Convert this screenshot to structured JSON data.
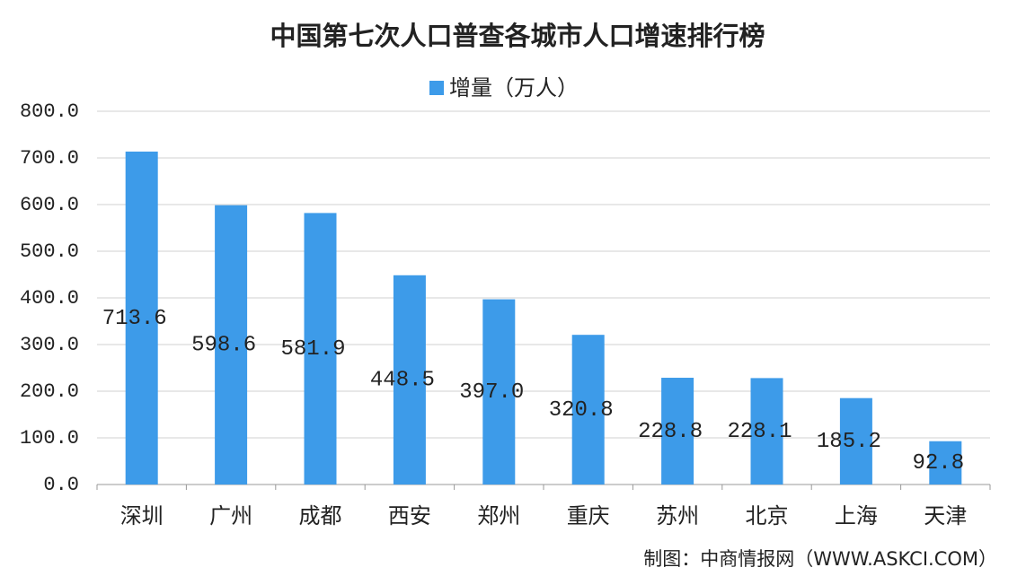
{
  "chart_data": {
    "type": "bar",
    "title": "中国第七次人口普查各城市人口增速排行榜",
    "legend": "增量（万人）",
    "source": "制图：中商情报网（WWW.ASKCI.COM）",
    "categories": [
      "深圳",
      "广州",
      "成都",
      "西安",
      "郑州",
      "重庆",
      "苏州",
      "北京",
      "上海",
      "天津"
    ],
    "values": [
      713.6,
      598.6,
      581.9,
      448.5,
      397.0,
      320.8,
      228.8,
      228.1,
      185.2,
      92.8
    ],
    "value_labels": [
      "713.6",
      "598.6",
      "581.9",
      "448.5",
      "397.0",
      "320.8",
      "228.8",
      "228.1",
      "185.2",
      "92.8"
    ],
    "color": "#3d9be9",
    "ylim": [
      0,
      800
    ],
    "yticks": [
      {
        "value": 0,
        "label": "0.0"
      },
      {
        "value": 100,
        "label": "100.0"
      },
      {
        "value": 200,
        "label": "200.0"
      },
      {
        "value": 300,
        "label": "300.0"
      },
      {
        "value": 400,
        "label": "400.0"
      },
      {
        "value": 500,
        "label": "500.0"
      },
      {
        "value": 600,
        "label": "600.0"
      },
      {
        "value": 700,
        "label": "700.0"
      },
      {
        "value": 800,
        "label": "800.0"
      }
    ],
    "grid": true
  }
}
